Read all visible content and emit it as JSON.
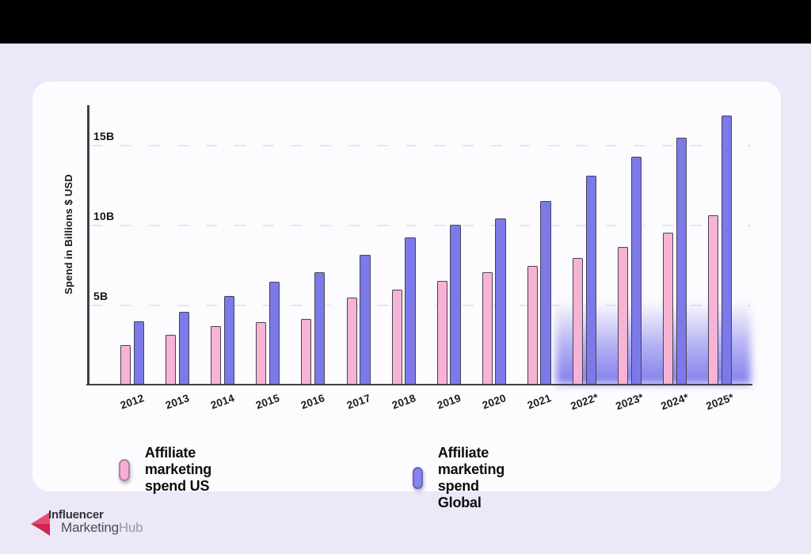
{
  "page": {
    "background": "#ece8f8",
    "letterbox_color": "#000000",
    "card_color": "#fcfbfe"
  },
  "chart_data": {
    "type": "bar",
    "title": "",
    "ylabel": "Spend in Billions $ USD",
    "xlabel": "",
    "ylim": [
      0,
      17.5
    ],
    "grid": "horizontal-dashed",
    "legend_position": "bottom",
    "y_ticks": [
      {
        "label": "15B",
        "value": 15
      },
      {
        "label": "10B",
        "value": 10
      },
      {
        "label": "5B",
        "value": 5
      }
    ],
    "categories": [
      "2012",
      "2013",
      "2014",
      "2015",
      "2016",
      "2017",
      "2018",
      "2019",
      "2020",
      "2021",
      "2022*",
      "2023*",
      "2024*",
      "2025*"
    ],
    "series": [
      {
        "name": "Affiliate marketing spend US",
        "color": "#f7b3d4",
        "values": [
          2.5,
          3.15,
          3.7,
          3.95,
          4.15,
          5.5,
          6.0,
          6.55,
          7.1,
          7.5,
          8.0,
          8.7,
          9.6,
          10.7
        ]
      },
      {
        "name": "Affiliate marketing spend Global",
        "color": "#7c79e8",
        "values": [
          4.0,
          4.6,
          5.6,
          6.5,
          7.1,
          8.2,
          9.3,
          10.1,
          10.5,
          11.6,
          13.2,
          14.4,
          15.6,
          17.0
        ]
      }
    ],
    "annotations": {
      "forecast_note": "* forecast years shown with blue gradient glow",
      "forecast_glow_color": "#7a76ea"
    }
  },
  "legend": {
    "items": [
      {
        "label": "Affiliate marketing spend US",
        "color": "#f8aed2"
      },
      {
        "label": "Affiliate marketing spend Global",
        "color": "#8583ef"
      }
    ]
  },
  "logo": {
    "line1": "Influencer",
    "line2_part1": "Marketing",
    "line2_part2": "Hub",
    "icon_color_light": "#e84d6f",
    "icon_color_dark": "#cf2652"
  }
}
